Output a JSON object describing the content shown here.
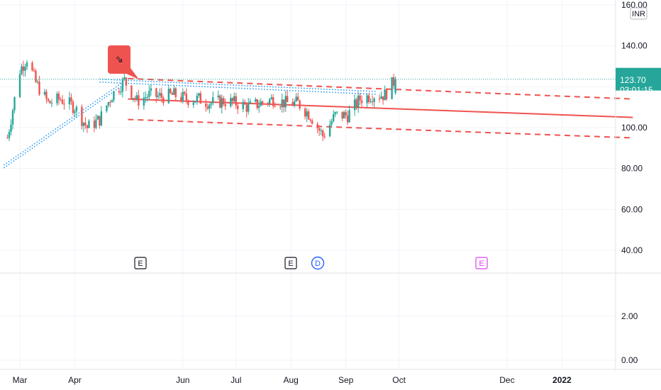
{
  "colors": {
    "up": "#26a69a",
    "down": "#ef5350",
    "trend": "#ef5350",
    "blue_trend": "#2196f3",
    "price_badge": "#26a69a",
    "grid": "#f0f3fa",
    "axis_border": "#e0e3eb",
    "marker_e": "#131722",
    "marker_d": "#2962ff",
    "marker_e_future": "#e040fb"
  },
  "price_axis": {
    "currency": "INR",
    "ticks": [
      "160.00",
      "140.00",
      "120.00",
      "100.00",
      "80.00",
      "60.00",
      "40.00"
    ],
    "tick_values": [
      160,
      140,
      120,
      100,
      80,
      60,
      40
    ]
  },
  "lower_axis": {
    "ticks": [
      "2.00",
      "0.00"
    ],
    "tick_values": [
      2,
      0
    ]
  },
  "time_axis": {
    "labels": [
      "Mar",
      "Apr",
      "Jun",
      "Jul",
      "Aug",
      "Sep",
      "Oct",
      "Dec",
      "2022"
    ]
  },
  "last_price": {
    "value": "123.70",
    "countdown": "03:01:15"
  },
  "events": [
    {
      "label": "E",
      "kind": "earnings"
    },
    {
      "label": "E",
      "kind": "earnings"
    },
    {
      "label": "D",
      "kind": "dividend"
    },
    {
      "label": "E",
      "kind": "earnings-upcoming"
    }
  ],
  "chart_data": {
    "type": "candlestick",
    "currency": "INR",
    "y_range": [
      40,
      160
    ],
    "close_series": [
      {
        "date": "2021-02-22",
        "close": 95
      },
      {
        "date": "2021-03-01",
        "close": 128
      },
      {
        "date": "2021-03-05",
        "close": 134
      },
      {
        "date": "2021-03-10",
        "close": 122
      },
      {
        "date": "2021-03-17",
        "close": 112
      },
      {
        "date": "2021-03-24",
        "close": 114
      },
      {
        "date": "2021-04-01",
        "close": 110
      },
      {
        "date": "2021-04-08",
        "close": 100
      },
      {
        "date": "2021-04-15",
        "close": 104
      },
      {
        "date": "2021-04-22",
        "close": 116
      },
      {
        "date": "2021-04-29",
        "close": 123
      },
      {
        "date": "2021-05-06",
        "close": 113
      },
      {
        "date": "2021-05-13",
        "close": 116
      },
      {
        "date": "2021-05-20",
        "close": 115
      },
      {
        "date": "2021-05-27",
        "close": 116
      },
      {
        "date": "2021-06-03",
        "close": 114
      },
      {
        "date": "2021-06-10",
        "close": 114
      },
      {
        "date": "2021-06-17",
        "close": 112
      },
      {
        "date": "2021-06-24",
        "close": 113
      },
      {
        "date": "2021-07-01",
        "close": 112
      },
      {
        "date": "2021-07-08",
        "close": 110
      },
      {
        "date": "2021-07-15",
        "close": 112
      },
      {
        "date": "2021-07-22",
        "close": 114
      },
      {
        "date": "2021-07-29",
        "close": 112
      },
      {
        "date": "2021-08-05",
        "close": 112
      },
      {
        "date": "2021-08-12",
        "close": 106
      },
      {
        "date": "2021-08-19",
        "close": 96
      },
      {
        "date": "2021-08-26",
        "close": 106
      },
      {
        "date": "2021-09-02",
        "close": 106
      },
      {
        "date": "2021-09-09",
        "close": 114
      },
      {
        "date": "2021-09-16",
        "close": 116
      },
      {
        "date": "2021-09-23",
        "close": 116
      },
      {
        "date": "2021-09-29",
        "close": 123.7
      }
    ],
    "trend_channel": {
      "mid": [
        {
          "date": "2021-05-01",
          "value": 114
        },
        {
          "date": "2022-02-10",
          "value": 105
        }
      ],
      "upper": [
        {
          "date": "2021-05-01",
          "value": 124
        },
        {
          "date": "2022-02-10",
          "value": 114
        }
      ],
      "lower": [
        {
          "date": "2021-05-01",
          "value": 104
        },
        {
          "date": "2022-02-10",
          "value": 95
        }
      ]
    },
    "blue_trendlines": [
      [
        {
          "date": "2021-02-20",
          "value": 81
        },
        {
          "date": "2021-04-29",
          "value": 122
        }
      ],
      [
        {
          "date": "2021-04-15",
          "value": 123
        },
        {
          "date": "2021-09-18",
          "value": 117
        }
      ]
    ],
    "last_price_line": 123.7
  }
}
